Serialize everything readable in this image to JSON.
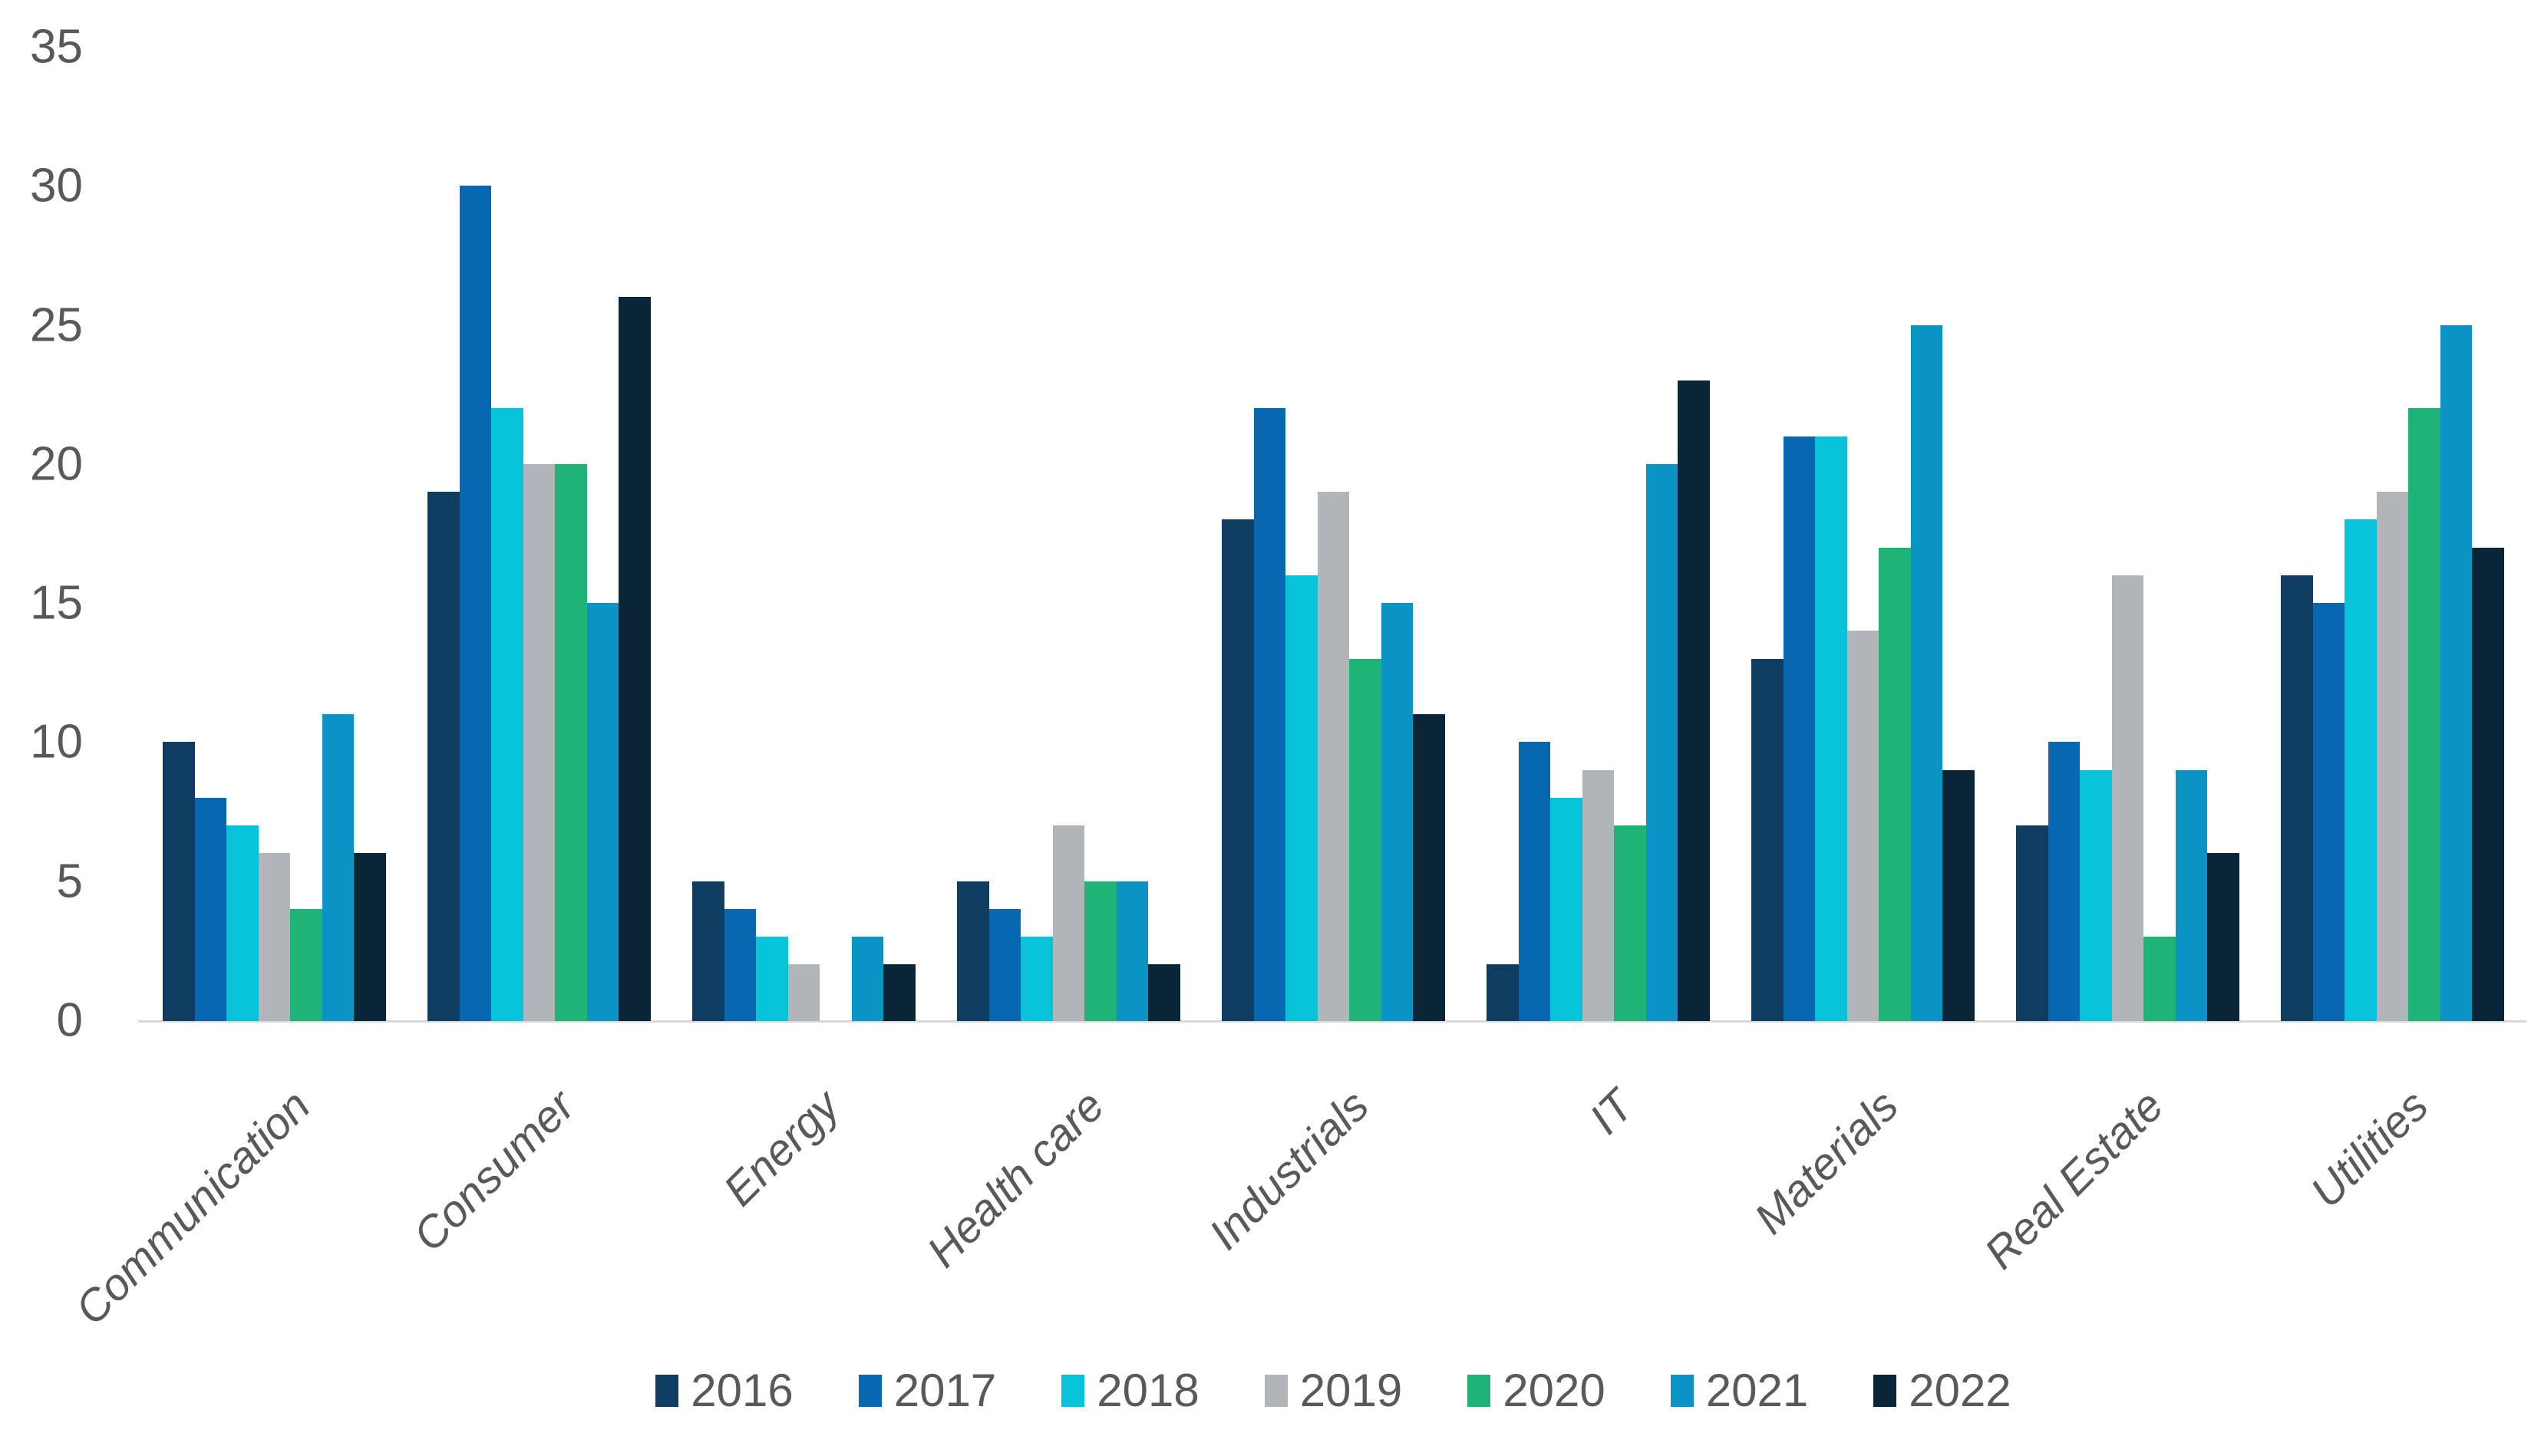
{
  "chart_data": {
    "type": "bar",
    "title": "",
    "xlabel": "",
    "ylabel": "",
    "categories": [
      "Communication",
      "Consumer",
      "Energy",
      "Health care",
      "Industrials",
      "IT",
      "Materials",
      "Real Estate",
      "Utilities"
    ],
    "series": [
      {
        "name": "2016",
        "color": "#0E3D61",
        "values": [
          10,
          19,
          5,
          5,
          18,
          2,
          13,
          7,
          16
        ]
      },
      {
        "name": "2017",
        "color": "#0767AF",
        "values": [
          8,
          30,
          4,
          4,
          22,
          10,
          21,
          10,
          15
        ]
      },
      {
        "name": "2018",
        "color": "#06C3D8",
        "values": [
          7,
          22,
          3,
          3,
          16,
          8,
          21,
          9,
          18
        ]
      },
      {
        "name": "2019",
        "color": "#B2B5B7",
        "values": [
          6,
          20,
          2,
          7,
          19,
          9,
          14,
          16,
          19
        ]
      },
      {
        "name": "2020",
        "color": "#20B377",
        "values": [
          4,
          20,
          0,
          5,
          13,
          7,
          17,
          3,
          22
        ]
      },
      {
        "name": "2021",
        "color": "#0A93C5",
        "values": [
          11,
          15,
          3,
          5,
          15,
          20,
          25,
          9,
          25
        ]
      },
      {
        "name": "2022",
        "color": "#0A2438",
        "values": [
          6,
          26,
          2,
          2,
          11,
          23,
          9,
          6,
          17
        ]
      }
    ],
    "y_ticks": [
      0,
      5,
      10,
      15,
      20,
      25,
      30,
      35
    ],
    "ylim": [
      0,
      35
    ],
    "grid": false,
    "legend_position": "bottom",
    "axis_line_color": "#d9d9d9",
    "label_color": "#595959"
  }
}
